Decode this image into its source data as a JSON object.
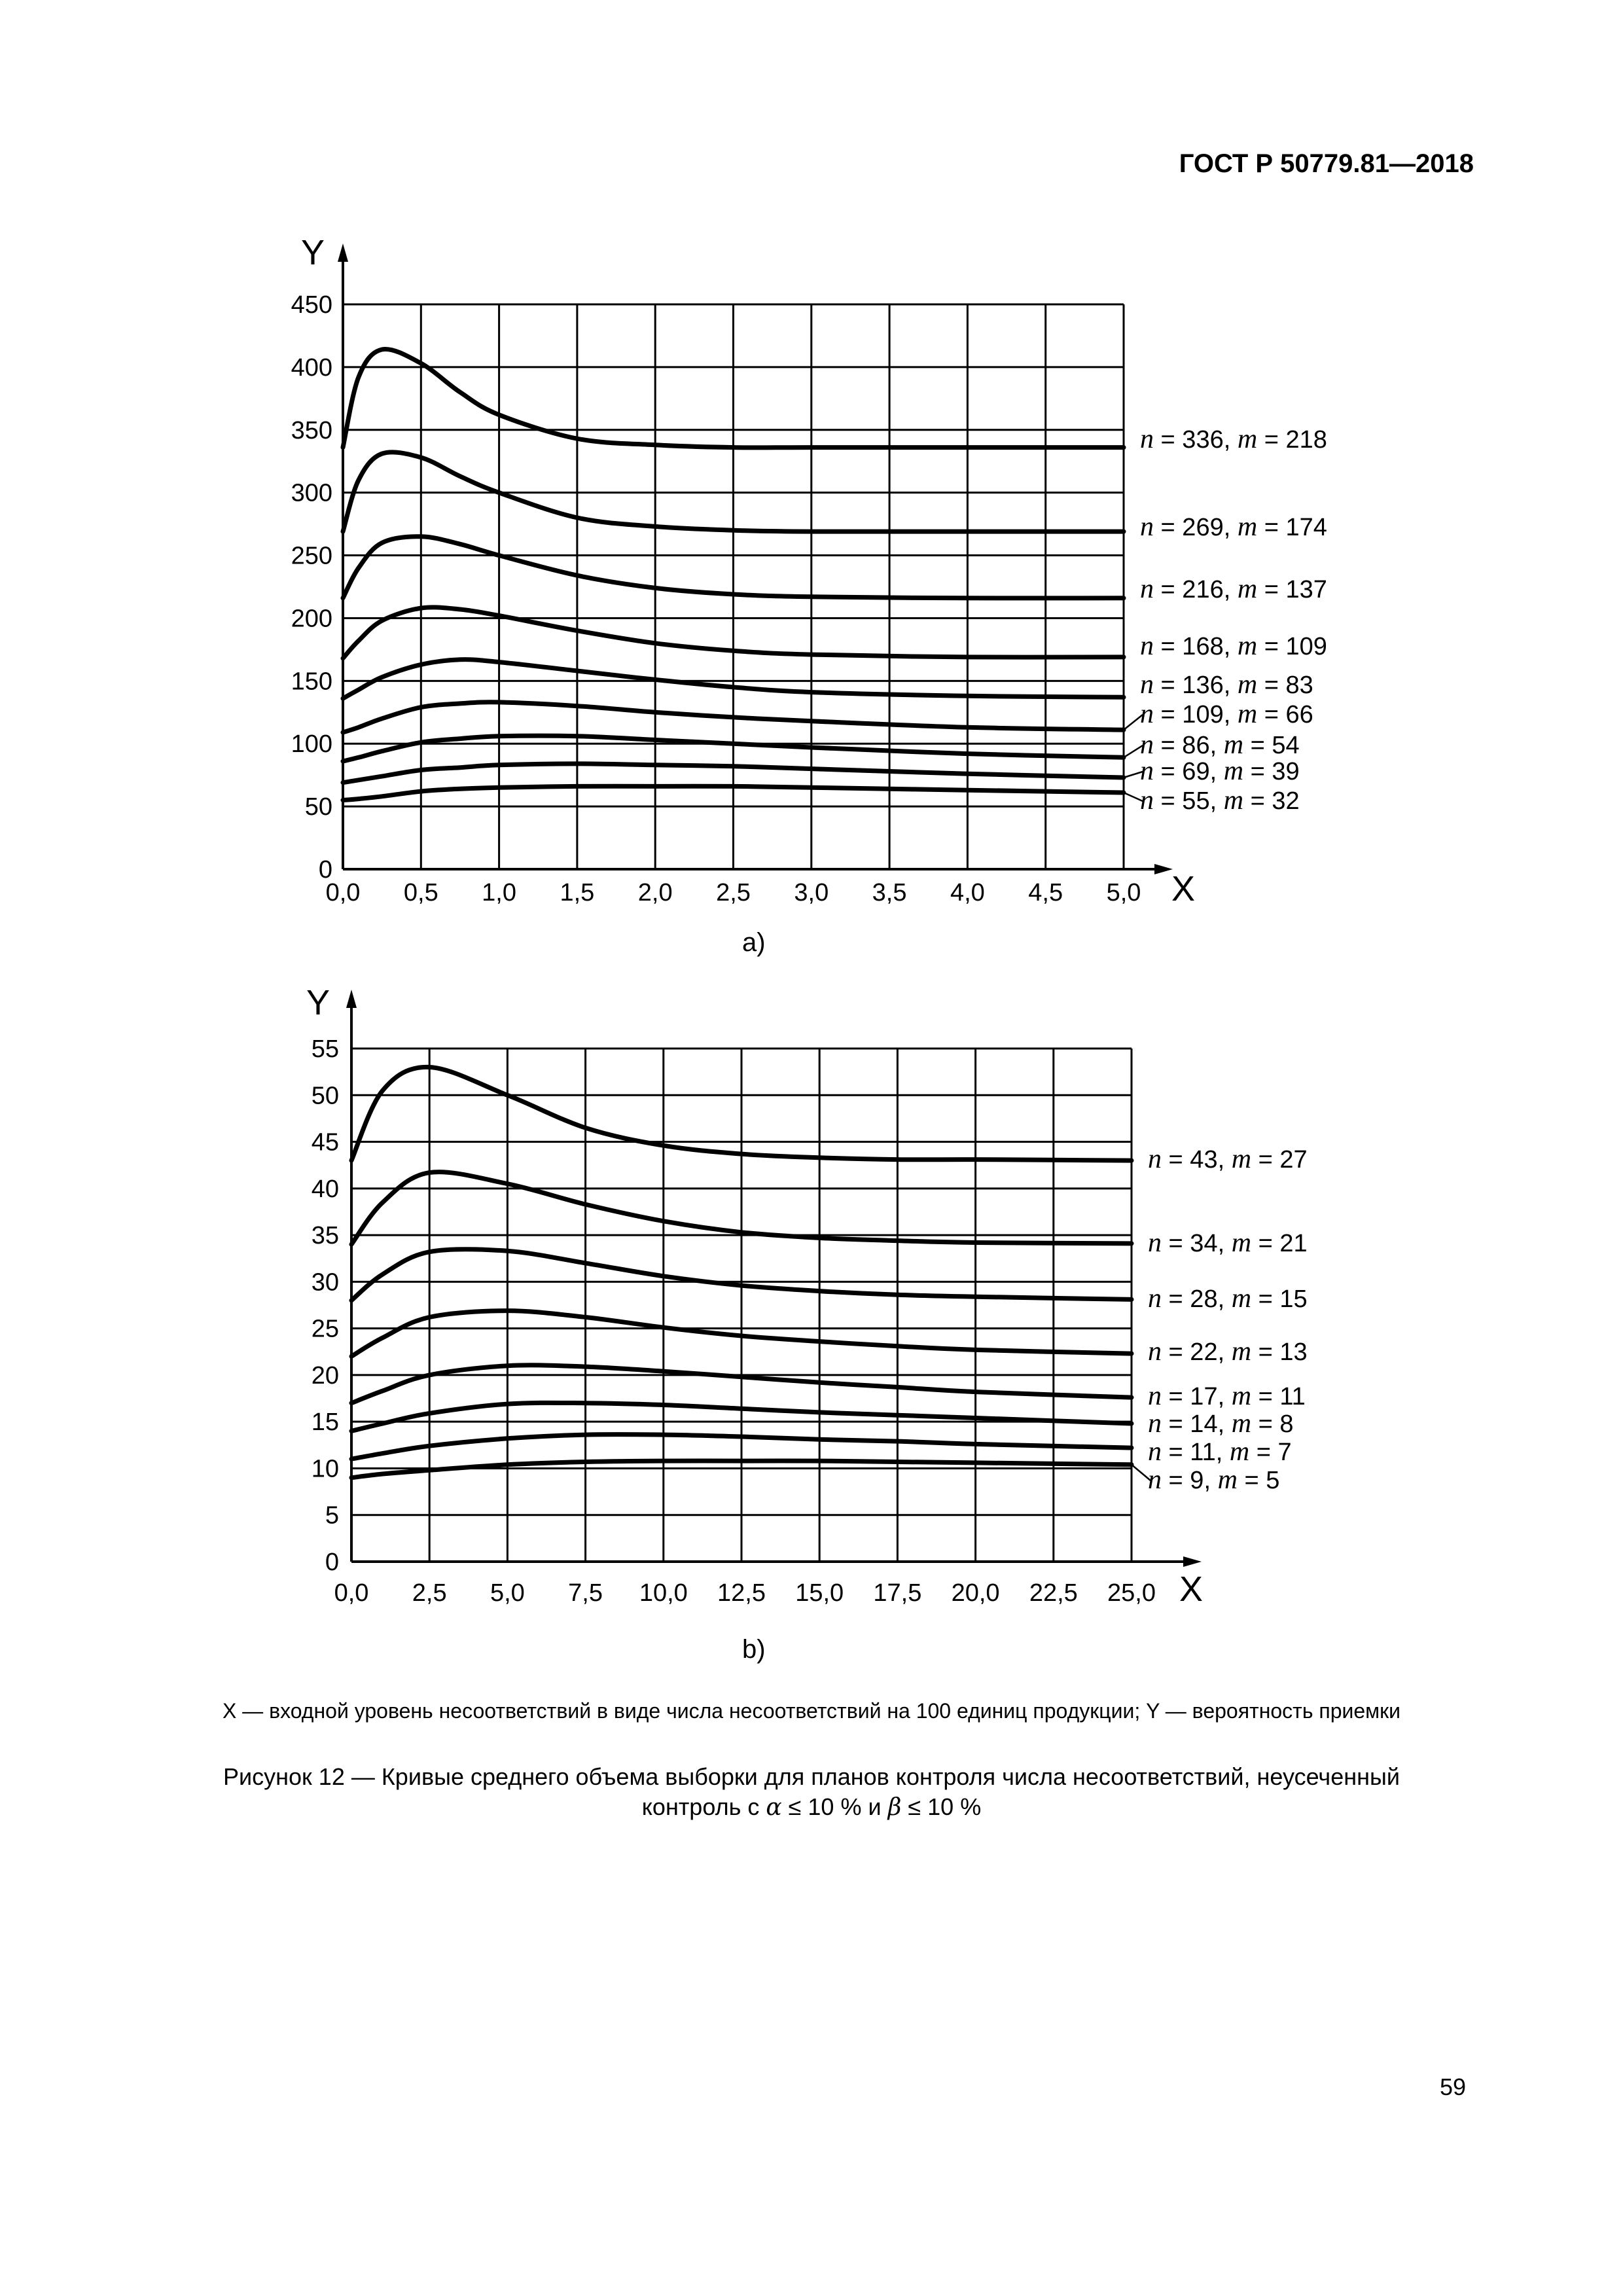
{
  "header": {
    "doc_id": "ГОСТ Р 50779.81—2018"
  },
  "charts_caption": {
    "legend": "X — входной уровень несоответствий в виде числа несоответствий на 100 единиц продукции; Y — вероятность приемки",
    "title_line1": "Рисунок 12 — Кривые среднего объема выборки для планов контроля числа несоответствий, неусеченный",
    "title_line2_prefix": "контроль с ",
    "alpha": "α",
    "title_line2_mid": " ≤ 10 % и ",
    "beta": "β",
    "title_line2_suffix": " ≤ 10 %"
  },
  "page_number": "59",
  "chart_data": [
    {
      "type": "line",
      "panel_label": "a)",
      "xlabel": "X",
      "ylabel": "Y",
      "xlim": [
        0,
        5
      ],
      "ylim": [
        0,
        450
      ],
      "grid": true,
      "xticks": [
        "0,0",
        "0,5",
        "1,0",
        "1,5",
        "2,0",
        "2,5",
        "3,0",
        "3,5",
        "4,0",
        "4,5",
        "5,0"
      ],
      "yticks": [
        "0",
        "50",
        "100",
        "150",
        "200",
        "250",
        "300",
        "350",
        "400",
        "450"
      ],
      "x": [
        0,
        0.1,
        0.25,
        0.5,
        0.75,
        1.0,
        1.5,
        2.0,
        2.5,
        3.0,
        4.0,
        5.0
      ],
      "series": [
        {
          "name": "n = 336, m = 218",
          "values": [
            336,
            392,
            414,
            403,
            380,
            362,
            343,
            338,
            336,
            336,
            336,
            336
          ]
        },
        {
          "name": "n = 269, m = 174",
          "values": [
            269,
            310,
            331,
            328,
            313,
            300,
            280,
            273,
            270,
            269,
            269,
            269
          ]
        },
        {
          "name": "n = 216, m = 137",
          "values": [
            216,
            240,
            260,
            265,
            259,
            250,
            234,
            224,
            219,
            217,
            216,
            216
          ]
        },
        {
          "name": "n = 168, m = 109",
          "values": [
            168,
            182,
            198,
            208,
            207,
            202,
            190,
            180,
            174,
            171,
            169,
            169
          ]
        },
        {
          "name": "n = 136, m = 83",
          "values": [
            136,
            143,
            153,
            163,
            167,
            165,
            158,
            151,
            145,
            141,
            138,
            137
          ]
        },
        {
          "name": "n = 109, m = 66",
          "values": [
            109,
            113,
            120,
            129,
            132,
            133,
            130,
            125,
            121,
            118,
            113,
            111
          ]
        },
        {
          "name": "n = 86, m = 54",
          "values": [
            86,
            89,
            94,
            101,
            104,
            106,
            106,
            103,
            100,
            97,
            92,
            89
          ]
        },
        {
          "name": "n = 69, m = 39",
          "values": [
            69,
            71,
            74,
            79,
            81,
            83,
            84,
            83,
            82,
            80,
            76,
            73
          ]
        },
        {
          "name": "n = 55, m = 32",
          "values": [
            55,
            56,
            58,
            62,
            64,
            65,
            66,
            66,
            66,
            65,
            63,
            61
          ]
        }
      ]
    },
    {
      "type": "line",
      "panel_label": "b)",
      "xlabel": "X",
      "ylabel": "Y",
      "xlim": [
        0,
        25
      ],
      "ylim": [
        0,
        55
      ],
      "grid": true,
      "xticks": [
        "0,0",
        "2,5",
        "5,0",
        "7,5",
        "10,0",
        "12,5",
        "15,0",
        "17,5",
        "20,0",
        "22,5",
        "25,0"
      ],
      "yticks": [
        "0",
        "5",
        "10",
        "15",
        "20",
        "25",
        "30",
        "35",
        "40",
        "45",
        "50",
        "55"
      ],
      "x": [
        0,
        1,
        2.5,
        5,
        7.5,
        10,
        12.5,
        15,
        17.5,
        20,
        25
      ],
      "series": [
        {
          "name": "n = 43, m = 27",
          "values": [
            43,
            50.5,
            53,
            50,
            46.5,
            44.6,
            43.7,
            43.3,
            43.1,
            43.1,
            43
          ]
        },
        {
          "name": "n = 34, m = 21",
          "values": [
            34,
            38.5,
            41.7,
            40.5,
            38.3,
            36.5,
            35.3,
            34.7,
            34.4,
            34.2,
            34.1
          ]
        },
        {
          "name": "n = 28, m = 15",
          "values": [
            28,
            30.8,
            33.2,
            33.3,
            32,
            30.6,
            29.6,
            29,
            28.6,
            28.4,
            28.1
          ]
        },
        {
          "name": "n = 22, m = 13",
          "values": [
            22,
            24,
            26.2,
            26.9,
            26.2,
            25.1,
            24.2,
            23.6,
            23.1,
            22.7,
            22.3
          ]
        },
        {
          "name": "n = 17, m = 11",
          "values": [
            17,
            18.3,
            20,
            21,
            20.9,
            20.4,
            19.8,
            19.2,
            18.7,
            18.2,
            17.6
          ]
        },
        {
          "name": "n = 14, m = 8",
          "values": [
            14,
            14.8,
            15.9,
            16.9,
            17,
            16.8,
            16.4,
            16,
            15.7,
            15.4,
            14.8
          ]
        },
        {
          "name": "n = 11, m = 7",
          "values": [
            11,
            11.6,
            12.4,
            13.2,
            13.6,
            13.6,
            13.4,
            13.1,
            12.9,
            12.6,
            12.2
          ]
        },
        {
          "name": "n = 9, m = 5",
          "values": [
            9,
            9.4,
            9.8,
            10.4,
            10.7,
            10.8,
            10.8,
            10.8,
            10.7,
            10.6,
            10.4
          ]
        }
      ]
    }
  ]
}
